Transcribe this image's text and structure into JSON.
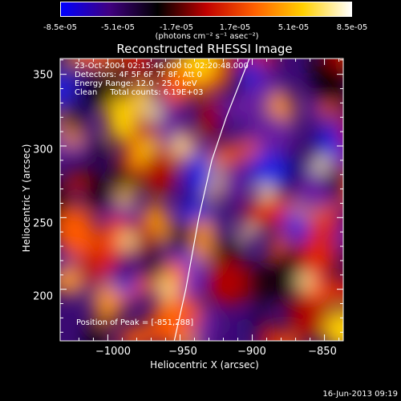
{
  "colorbar": {
    "ticks": [
      "-8.5e-05",
      "-5.1e-05",
      "-1.7e-05",
      "1.7e-05",
      "5.1e-05",
      "8.5e-05"
    ],
    "min": -8.5e-05,
    "max": 8.5e-05,
    "unit_label": "(photons cm⁻² s⁻¹ asec⁻²)",
    "colors": [
      "#0000ff",
      "#400080",
      "#000000",
      "#c00000",
      "#ff6000",
      "#ffd000",
      "#ffffff"
    ]
  },
  "chart_data": {
    "type": "heatmap",
    "title": "Reconstructed RHESSI Image",
    "xlabel": "Heliocentric X (arcsec)",
    "ylabel": "Heliocentric Y (arcsec)",
    "xlim": [
      -1033,
      -837
    ],
    "ylim": [
      164,
      361
    ],
    "xticks": [
      "−1000",
      "−950",
      "−900",
      "−850"
    ],
    "xtick_values": [
      -1000,
      -950,
      -900,
      -850
    ],
    "yticks": [
      "350",
      "300",
      "250",
      "200"
    ],
    "ytick_values": [
      350,
      300,
      250,
      200
    ],
    "annotations": [
      "23-Oct-2004 02:15:46.000 to 02:20:48.000",
      "Detectors: 4F 5F 6F 7F 8F, Att 0",
      "Energy Range: 12.0 - 25.0 keV",
      "Clean     Total counts: 6.19E+03"
    ],
    "peak_label": "Position of Peak = [-851,288]",
    "limb_curve": [
      [
        -954,
        164
      ],
      [
        -946,
        200
      ],
      [
        -937,
        250
      ],
      [
        -928,
        290
      ],
      [
        -918,
        320
      ],
      [
        -902,
        361
      ]
    ]
  },
  "timestamp": "16-Jun-2013 09:19"
}
